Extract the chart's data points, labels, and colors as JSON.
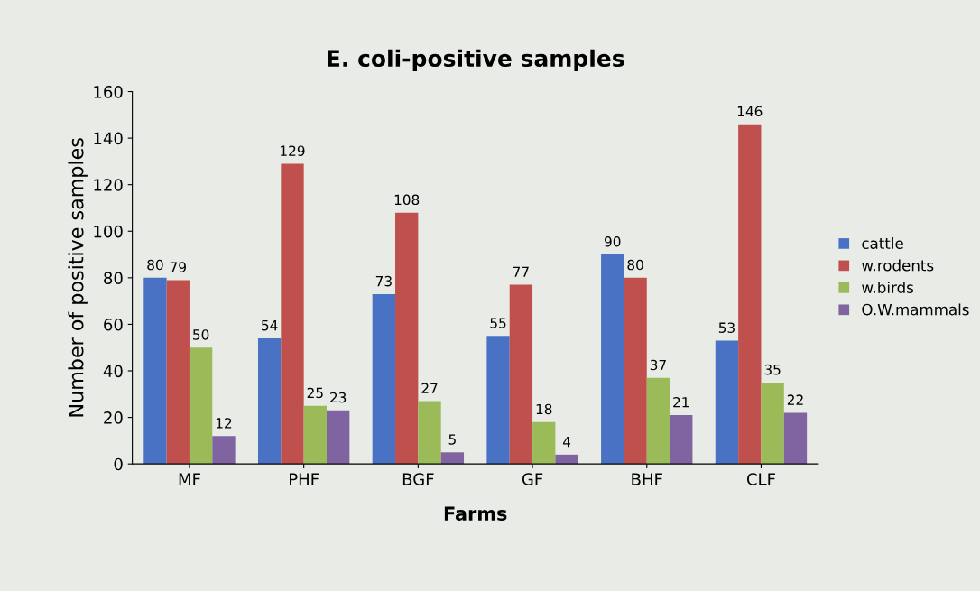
{
  "chart_data": {
    "type": "bar",
    "title": "E. coli-positive samples",
    "xlabel": "Farms",
    "ylabel": "Number of positive samples",
    "categories": [
      "MF",
      "PHF",
      "BGF",
      "GF",
      "BHF",
      "CLF"
    ],
    "series": [
      {
        "name": "cattle",
        "color": "#4a72c4",
        "values": [
          80,
          54,
          73,
          55,
          90,
          53
        ]
      },
      {
        "name": "w.rodents",
        "color": "#c0504d",
        "values": [
          79,
          129,
          108,
          77,
          80,
          146
        ]
      },
      {
        "name": "w.birds",
        "color": "#9bbb59",
        "values": [
          50,
          25,
          27,
          18,
          37,
          35
        ]
      },
      {
        "name": "O.W.mammals",
        "color": "#8064a2",
        "values": [
          12,
          23,
          5,
          4,
          21,
          22
        ]
      }
    ],
    "ylim": [
      0,
      160
    ],
    "yticks": [
      0,
      20,
      40,
      60,
      80,
      100,
      120,
      140,
      160
    ],
    "data_labels": true,
    "grid": false,
    "legend": "right"
  }
}
